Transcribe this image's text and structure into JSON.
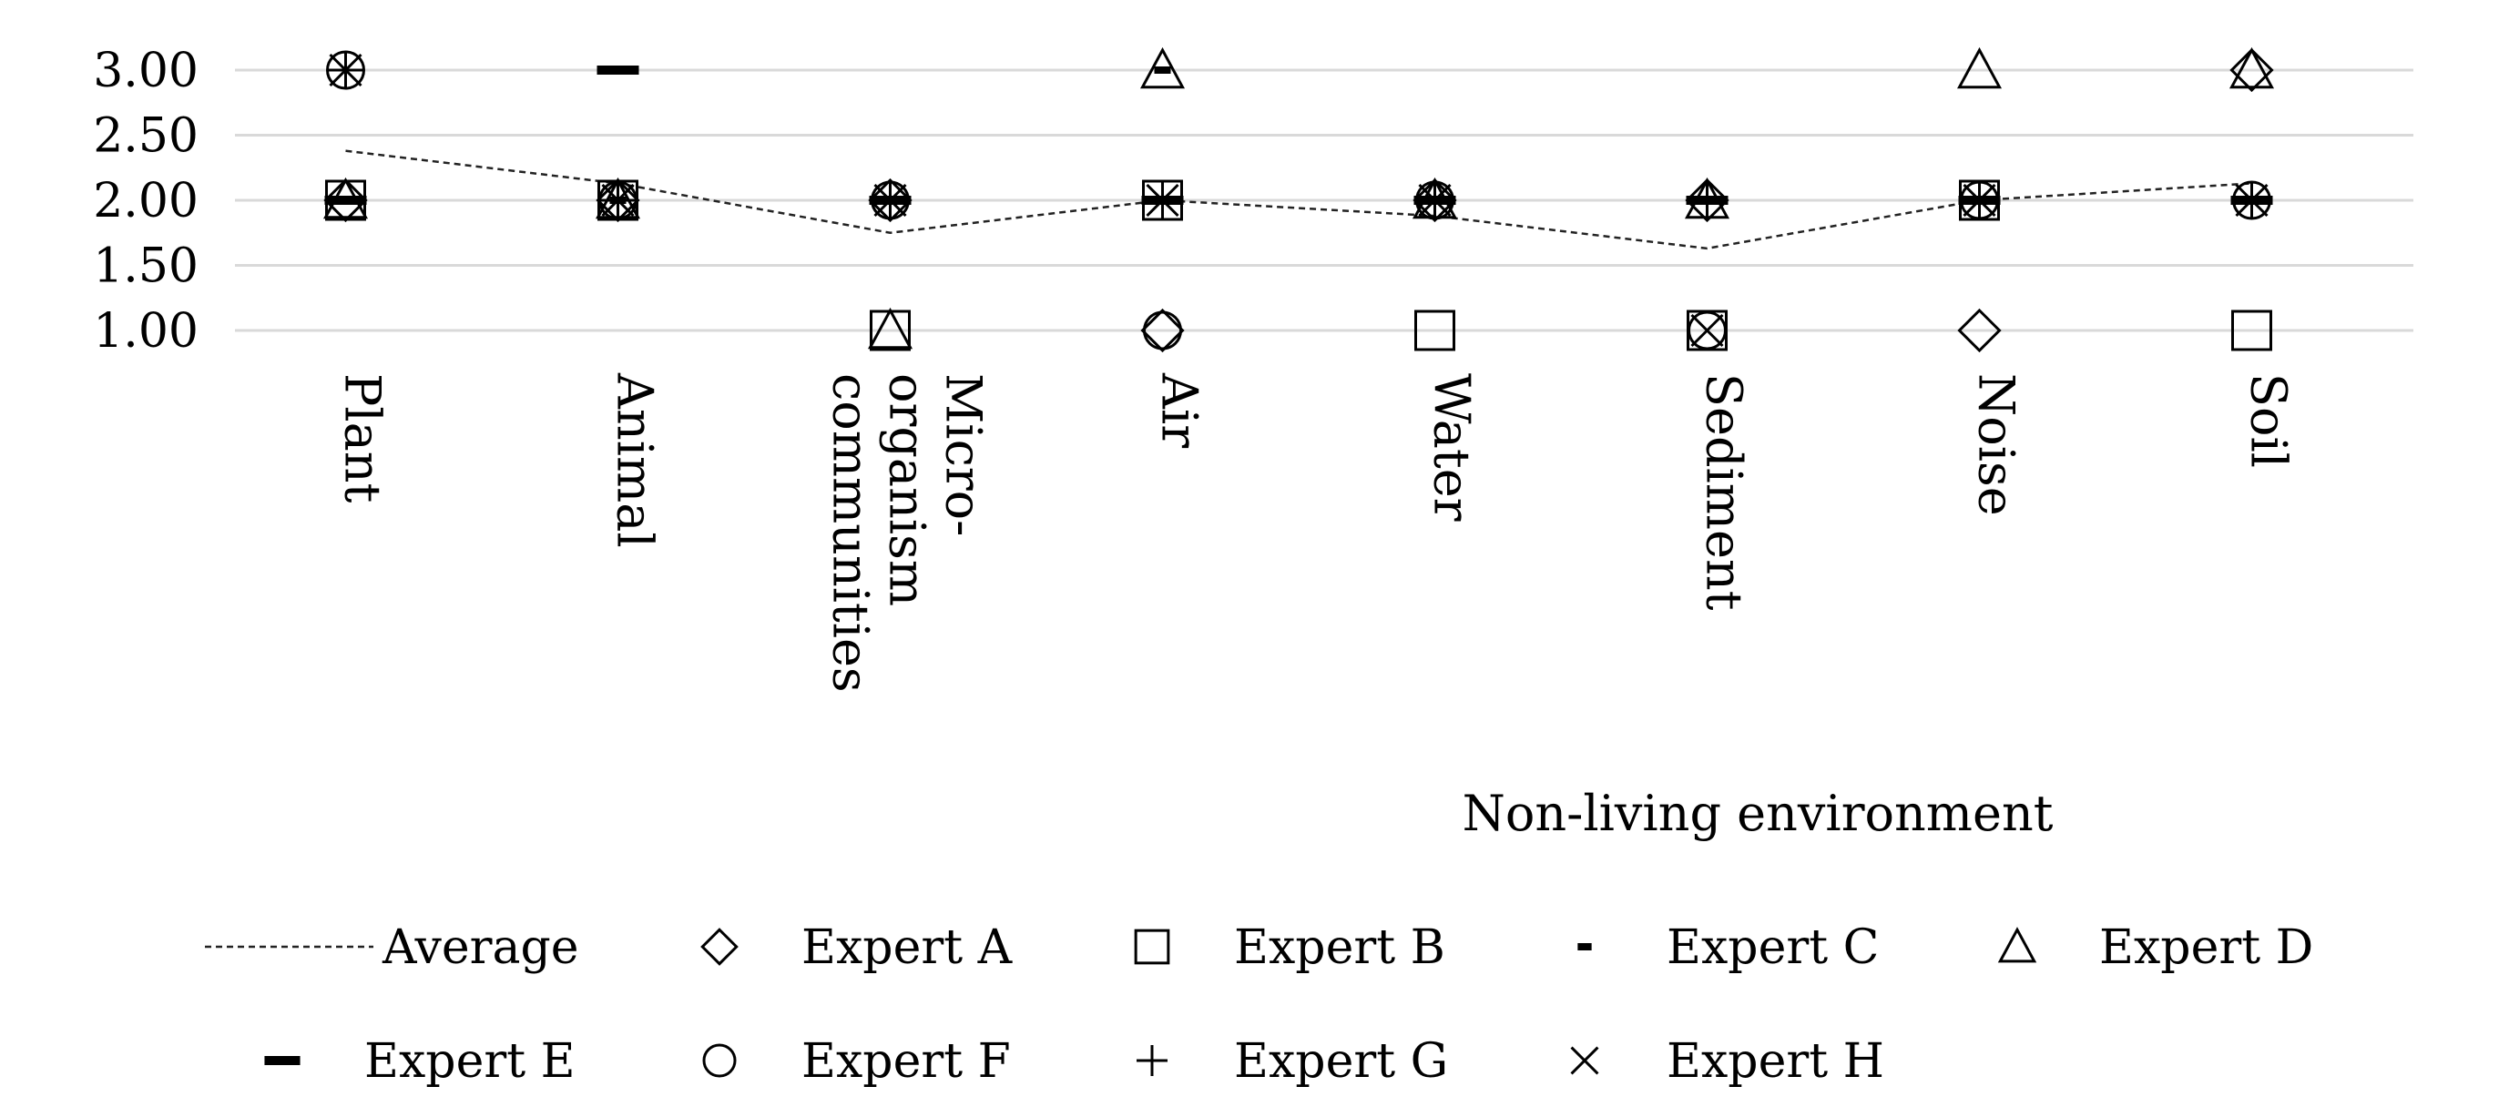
{
  "chart_data": {
    "type": "scatter",
    "title": "",
    "xlabel": "",
    "ylabel": "",
    "ylim": [
      1.0,
      3.0
    ],
    "yticks": [
      "1.00",
      "1.50",
      "2.00",
      "2.50",
      "3.00"
    ],
    "grid": true,
    "legend_position": "bottom",
    "categories": [
      [
        "Plant"
      ],
      [
        "Animal"
      ],
      [
        "Micro-",
        "organism",
        "communities"
      ],
      [
        "Air"
      ],
      [
        "Water"
      ],
      [
        "Sediment"
      ],
      [
        "Noise"
      ],
      [
        "Soil"
      ]
    ],
    "group_label": "Non-living environment",
    "series": [
      {
        "name": "Average",
        "marker": "dashed-line",
        "values": [
          2.38,
          2.13,
          1.75,
          2.0,
          1.88,
          1.63,
          2.0,
          2.13
        ]
      },
      {
        "name": "Expert A",
        "marker": "diamond",
        "values": [
          2,
          2,
          2,
          1,
          2,
          2,
          1,
          3
        ]
      },
      {
        "name": "Expert B",
        "marker": "square",
        "values": [
          2,
          2,
          1,
          2,
          1,
          1,
          2,
          1
        ]
      },
      {
        "name": "Expert C",
        "marker": "dash-small",
        "values": [
          2,
          2,
          2,
          3,
          2,
          2,
          2,
          2
        ]
      },
      {
        "name": "Expert D",
        "marker": "triangle",
        "values": [
          2,
          2,
          1,
          3,
          2,
          2,
          3,
          3
        ]
      },
      {
        "name": "Expert E",
        "marker": "dash-large",
        "values": [
          2,
          3,
          2,
          2,
          2,
          2,
          2,
          2
        ]
      },
      {
        "name": "Expert F",
        "marker": "circle",
        "values": [
          3,
          2,
          2,
          1,
          2,
          1,
          2,
          2
        ]
      },
      {
        "name": "Expert G",
        "marker": "plus",
        "values": [
          3,
          2,
          2,
          2,
          2,
          2,
          2,
          2
        ]
      },
      {
        "name": "Expert H",
        "marker": "cross",
        "values": [
          3,
          2,
          2,
          2,
          2,
          1,
          2,
          2
        ]
      }
    ]
  }
}
